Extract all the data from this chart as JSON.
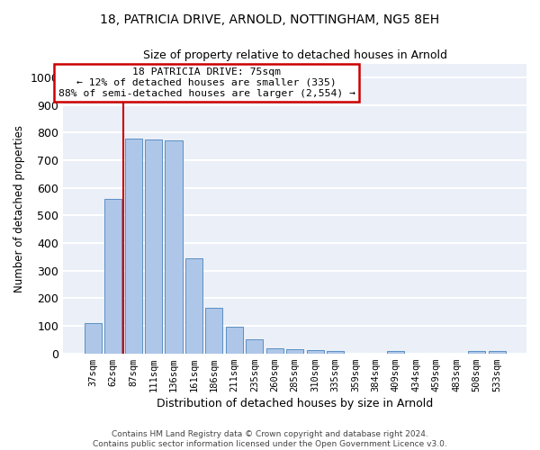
{
  "title1": "18, PATRICIA DRIVE, ARNOLD, NOTTINGHAM, NG5 8EH",
  "title2": "Size of property relative to detached houses in Arnold",
  "xlabel": "Distribution of detached houses by size in Arnold",
  "ylabel": "Number of detached properties",
  "categories": [
    "37sqm",
    "62sqm",
    "87sqm",
    "111sqm",
    "136sqm",
    "161sqm",
    "186sqm",
    "211sqm",
    "235sqm",
    "260sqm",
    "285sqm",
    "310sqm",
    "335sqm",
    "359sqm",
    "384sqm",
    "409sqm",
    "434sqm",
    "459sqm",
    "483sqm",
    "508sqm",
    "533sqm"
  ],
  "values": [
    110,
    560,
    778,
    775,
    770,
    343,
    165,
    98,
    52,
    18,
    15,
    12,
    10,
    0,
    0,
    8,
    0,
    0,
    0,
    8,
    8
  ],
  "bar_color": "#aec6e8",
  "bar_edge_color": "#5b8fc3",
  "bg_color": "#eaeff8",
  "grid_color": "#ffffff",
  "vline_x": 1.5,
  "vline_color": "#cc0000",
  "annotation_line1": "18 PATRICIA DRIVE: 75sqm",
  "annotation_line2": "← 12% of detached houses are smaller (335)",
  "annotation_line3": "88% of semi-detached houses are larger (2,554) →",
  "annotation_box_color": "#cc0000",
  "footer1": "Contains HM Land Registry data © Crown copyright and database right 2024.",
  "footer2": "Contains public sector information licensed under the Open Government Licence v3.0.",
  "ylim": [
    0,
    1050
  ],
  "yticks": [
    0,
    100,
    200,
    300,
    400,
    500,
    600,
    700,
    800,
    900,
    1000
  ]
}
